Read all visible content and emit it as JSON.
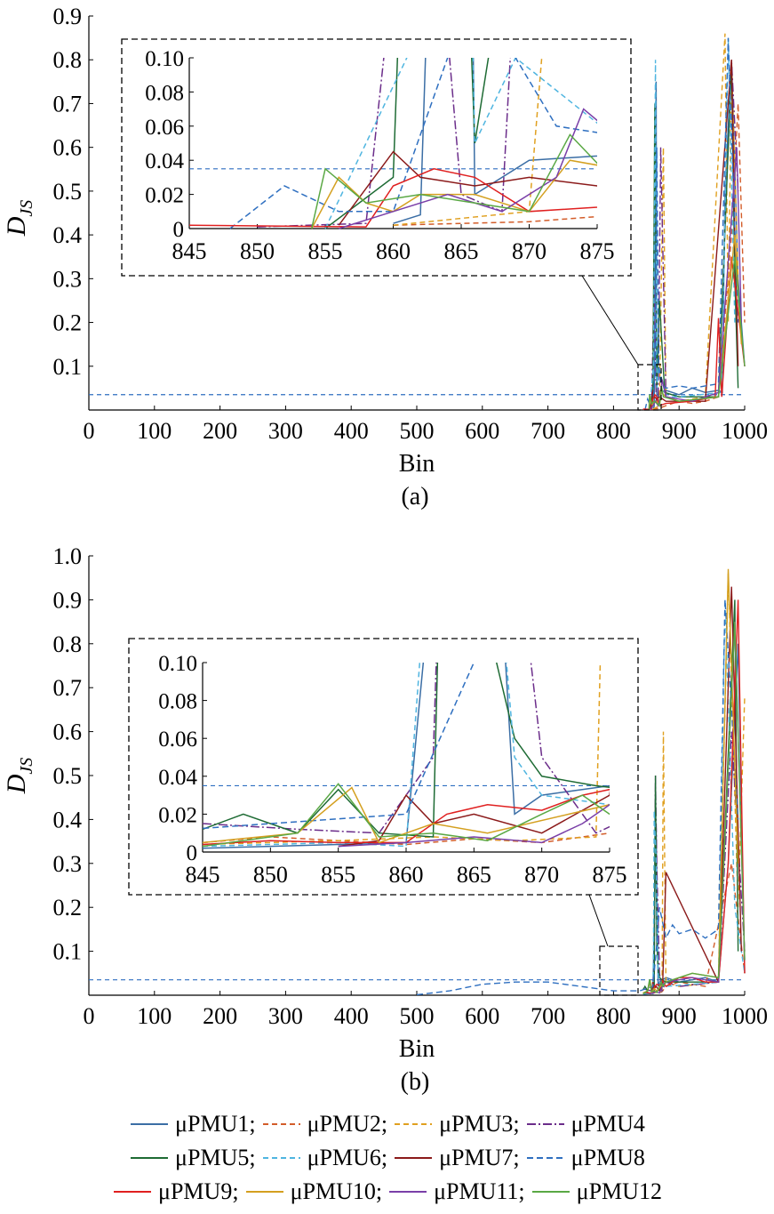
{
  "chart_data": [
    {
      "type": "line",
      "panel_label": "(a)",
      "xlabel": "Bin",
      "ylabel": "D",
      "ylabel_sub": "JS",
      "xlim": [
        0,
        1000
      ],
      "ylim": [
        0,
        0.9
      ],
      "xticks": [
        "0",
        "100",
        "200",
        "300",
        "400",
        "500",
        "600",
        "700",
        "800",
        "900",
        "1000"
      ],
      "yticks": [
        "0.1",
        "0.2",
        "0.3",
        "0.4",
        "0.5",
        "0.6",
        "0.7",
        "0.8",
        "0.9"
      ],
      "threshold": 0.035,
      "inset": {
        "xlim": [
          845,
          875
        ],
        "ylim": [
          0,
          0.1
        ],
        "xticks": [
          "845",
          "850",
          "855",
          "860",
          "865",
          "870",
          "875"
        ],
        "yticks": [
          "0",
          "0.02",
          "0.04",
          "0.06",
          "0.08",
          "0.10"
        ]
      },
      "series": [
        {
          "name": "μPMU1",
          "color": "#3b6ea5",
          "dash": "",
          "x": [
            860,
            862,
            865,
            866,
            870,
            880,
            900,
            920,
            940,
            960,
            966,
            970,
            980,
            990,
            1000
          ],
          "y": [
            0.003,
            0.008,
            0.75,
            0.02,
            0.04,
            0.045,
            0.035,
            0.05,
            0.04,
            0.045,
            0.04,
            0.5,
            0.8,
            0.3,
            0.1
          ]
        },
        {
          "name": "μPMU2",
          "color": "#d35d2a",
          "dash": "6,4",
          "x": [
            860,
            870,
            880,
            900,
            920,
            940,
            960,
            980,
            990,
            1000
          ],
          "y": [
            0.002,
            0.004,
            0.01,
            0.02,
            0.015,
            0.02,
            0.03,
            0.4,
            0.7,
            0.2
          ]
        },
        {
          "name": "μPMU3",
          "color": "#e0a020",
          "dash": "6,4",
          "x": [
            860,
            870,
            874,
            876,
            880,
            900,
            940,
            970,
            975,
            980,
            990
          ],
          "y": [
            0.002,
            0.01,
            0.4,
            0.6,
            0.03,
            0.02,
            0.03,
            0.86,
            0.2,
            0.8,
            0.3
          ]
        },
        {
          "name": "μPMU4",
          "color": "#6b2d8a",
          "dash": "10,3,2,3",
          "x": [
            850,
            858,
            862,
            865,
            868,
            872,
            880,
            900,
            960,
            980,
            990
          ],
          "y": [
            0.001,
            0.003,
            0.3,
            0.02,
            0.01,
            0.6,
            0.03,
            0.02,
            0.03,
            0.8,
            0.5
          ]
        },
        {
          "name": "μPMU5",
          "color": "#1e6b34",
          "dash": "",
          "x": [
            855,
            860,
            863,
            866,
            870,
            878,
            900,
            960,
            980,
            985,
            990
          ],
          "y": [
            0.0,
            0.03,
            0.7,
            0.05,
            0.25,
            0.04,
            0.03,
            0.03,
            0.79,
            0.3,
            0.05
          ]
        },
        {
          "name": "μPMU6",
          "color": "#4fb5e0",
          "dash": "6,4",
          "x": [
            855,
            861,
            864,
            866,
            869,
            880,
            900,
            965,
            975,
            985
          ],
          "y": [
            0.0,
            0.1,
            0.8,
            0.05,
            0.1,
            0.03,
            0.03,
            0.04,
            0.85,
            0.2
          ]
        },
        {
          "name": "μPMU7",
          "color": "#8b1a1a",
          "dash": "",
          "x": [
            856,
            860,
            862,
            866,
            870,
            880,
            940,
            980,
            985,
            990
          ],
          "y": [
            0.002,
            0.045,
            0.03,
            0.025,
            0.03,
            0.02,
            0.02,
            0.8,
            0.4,
            0.1
          ]
        },
        {
          "name": "μPMU8",
          "color": "#2e6fc0",
          "dash": "7,4",
          "x": [
            848,
            852,
            856,
            860,
            864,
            866,
            869,
            872,
            880,
            900,
            920,
            960,
            975,
            990
          ],
          "y": [
            0.0,
            0.025,
            0.01,
            0.01,
            0.1,
            0.6,
            0.1,
            0.06,
            0.05,
            0.055,
            0.05,
            0.06,
            0.85,
            0.2
          ]
        },
        {
          "name": "μPMU9",
          "color": "#e02020",
          "dash": "",
          "x": [
            845,
            858,
            860,
            863,
            866,
            870,
            880,
            920,
            955,
            960,
            965,
            980,
            1000
          ],
          "y": [
            0.002,
            0.001,
            0.025,
            0.035,
            0.03,
            0.01,
            0.015,
            0.02,
            0.03,
            0.21,
            0.03,
            0.35,
            0.1
          ]
        },
        {
          "name": "μPMU10",
          "color": "#d4a020",
          "dash": "",
          "x": [
            854,
            856,
            858,
            860,
            862,
            866,
            870,
            873,
            880,
            900,
            960,
            985,
            995
          ],
          "y": [
            0.0,
            0.03,
            0.015,
            0.01,
            0.02,
            0.02,
            0.01,
            0.04,
            0.03,
            0.02,
            0.03,
            0.4,
            0.15
          ]
        },
        {
          "name": "μPMU11",
          "color": "#7a3fa8",
          "dash": "",
          "x": [
            856,
            860,
            864,
            868,
            872,
            874,
            880,
            920,
            960,
            988,
            995
          ],
          "y": [
            0.0,
            0.01,
            0.02,
            0.01,
            0.03,
            0.07,
            0.03,
            0.02,
            0.04,
            0.6,
            0.2
          ]
        },
        {
          "name": "μPMU12",
          "color": "#5aa844",
          "dash": "",
          "x": [
            854,
            855,
            858,
            862,
            866,
            870,
            873,
            876,
            900,
            960,
            985,
            1000
          ],
          "y": [
            0.0,
            0.035,
            0.015,
            0.02,
            0.015,
            0.01,
            0.055,
            0.03,
            0.02,
            0.03,
            0.35,
            0.1
          ]
        }
      ]
    },
    {
      "type": "line",
      "panel_label": "(b)",
      "xlabel": "Bin",
      "ylabel": "D",
      "ylabel_sub": "JS",
      "xlim": [
        0,
        1000
      ],
      "ylim": [
        0,
        1.0
      ],
      "xticks": [
        "0",
        "100",
        "200",
        "300",
        "400",
        "500",
        "600",
        "700",
        "800",
        "900",
        "1000"
      ],
      "yticks": [
        "0.1",
        "0.2",
        "0.3",
        "0.4",
        "0.5",
        "0.6",
        "0.7",
        "0.8",
        "0.9",
        "1.0"
      ],
      "threshold": 0.035,
      "inset": {
        "xlim": [
          845,
          875
        ],
        "ylim": [
          0,
          0.1
        ],
        "xticks": [
          "845",
          "850",
          "855",
          "860",
          "865",
          "870",
          "875"
        ],
        "yticks": [
          "0",
          "0.02",
          "0.04",
          "0.06",
          "0.08",
          "0.10"
        ]
      },
      "series": [
        {
          "name": "μPMU1",
          "color": "#3b6ea5",
          "dash": "",
          "x": [
            845,
            850,
            855,
            860,
            865,
            868,
            870,
            880,
            900,
            940,
            960,
            975,
            990,
            1000
          ],
          "y": [
            0.002,
            0.003,
            0.004,
            0.005,
            0.38,
            0.02,
            0.03,
            0.04,
            0.03,
            0.04,
            0.03,
            0.3,
            0.8,
            0.05
          ]
        },
        {
          "name": "μPMU2",
          "color": "#d35d2a",
          "dash": "6,4",
          "x": [
            845,
            850,
            855,
            860,
            865,
            870,
            875,
            880,
            900,
            940,
            980,
            1000
          ],
          "y": [
            0.005,
            0.008,
            0.006,
            0.004,
            0.007,
            0.005,
            0.01,
            0.02,
            0.03,
            0.02,
            0.3,
            0.05
          ]
        },
        {
          "name": "μPMU3",
          "color": "#e0a020",
          "dash": "6,4",
          "x": [
            845,
            855,
            862,
            868,
            874,
            876,
            880,
            900,
            960,
            975,
            990,
            1000
          ],
          "y": [
            0.004,
            0.006,
            0.008,
            0.006,
            0.008,
            0.6,
            0.03,
            0.02,
            0.03,
            0.96,
            0.2,
            0.68
          ]
        },
        {
          "name": "μPMU4",
          "color": "#6b2d8a",
          "dash": "10,3,2,3",
          "x": [
            845,
            852,
            858,
            862,
            864,
            866,
            870,
            874,
            880,
            900,
            960,
            980,
            1000
          ],
          "y": [
            0.015,
            0.012,
            0.01,
            0.05,
            0.5,
            0.3,
            0.05,
            0.01,
            0.03,
            0.02,
            0.03,
            0.6,
            0.1
          ]
        },
        {
          "name": "μPMU5",
          "color": "#1e6b34",
          "dash": "",
          "x": [
            845,
            848,
            852,
            855,
            858,
            862,
            863,
            864,
            866,
            868,
            870,
            874,
            880,
            960,
            985,
            990
          ],
          "y": [
            0.012,
            0.02,
            0.01,
            0.033,
            0.01,
            0.008,
            0.3,
            0.5,
            0.12,
            0.06,
            0.04,
            0.035,
            0.03,
            0.03,
            0.9,
            0.1
          ]
        },
        {
          "name": "μPMU6",
          "color": "#4fb5e0",
          "dash": "6,4",
          "x": [
            845,
            855,
            860,
            861,
            862,
            865,
            868,
            870,
            880,
            960,
            970,
            985,
            1000
          ],
          "y": [
            0.003,
            0.005,
            0.003,
            0.1,
            0.42,
            0.3,
            0.05,
            0.03,
            0.02,
            0.03,
            0.9,
            0.2,
            0.05
          ]
        },
        {
          "name": "μPMU7",
          "color": "#8b1a1a",
          "dash": "",
          "x": [
            855,
            858,
            860,
            862,
            865,
            870,
            875,
            880,
            960,
            980,
            995
          ],
          "y": [
            0.003,
            0.006,
            0.03,
            0.015,
            0.02,
            0.01,
            0.03,
            0.28,
            0.03,
            0.93,
            0.1
          ]
        },
        {
          "name": "μPMU8",
          "color": "#2e6fc0",
          "dash": "7,4",
          "x": [
            500,
            550,
            600,
            650,
            700,
            750,
            800,
            840,
            860,
            865,
            870,
            880,
            890,
            900,
            920,
            940,
            960,
            970,
            990
          ],
          "y": [
            0.001,
            0.01,
            0.025,
            0.03,
            0.03,
            0.02,
            0.01,
            0.01,
            0.02,
            0.1,
            0.2,
            0.13,
            0.16,
            0.14,
            0.15,
            0.13,
            0.15,
            0.9,
            0.4
          ]
        },
        {
          "name": "μPMU9",
          "color": "#e02020",
          "dash": "",
          "x": [
            845,
            850,
            855,
            860,
            863,
            866,
            870,
            873,
            875,
            880,
            900,
            920,
            940,
            960,
            975,
            990,
            1000
          ],
          "y": [
            0.004,
            0.006,
            0.005,
            0.005,
            0.02,
            0.025,
            0.022,
            0.03,
            0.033,
            0.02,
            0.04,
            0.04,
            0.03,
            0.03,
            0.3,
            0.9,
            0.05
          ]
        },
        {
          "name": "μPMU10",
          "color": "#d4a020",
          "dash": "",
          "x": [
            845,
            852,
            856,
            858,
            862,
            866,
            872,
            875,
            880,
            920,
            960,
            975,
            990
          ],
          "y": [
            0.005,
            0.01,
            0.034,
            0.005,
            0.015,
            0.01,
            0.02,
            0.025,
            0.03,
            0.05,
            0.04,
            0.97,
            0.3
          ]
        },
        {
          "name": "μPMU11",
          "color": "#7a3fa8",
          "dash": "",
          "x": [
            855,
            860,
            865,
            870,
            873,
            875,
            880,
            920,
            960,
            985,
            1000
          ],
          "y": [
            0.003,
            0.005,
            0.008,
            0.005,
            0.015,
            0.025,
            0.03,
            0.04,
            0.03,
            0.85,
            0.08
          ]
        },
        {
          "name": "μPMU12",
          "color": "#5aa844",
          "dash": "",
          "x": [
            845,
            852,
            855,
            858,
            862,
            866,
            870,
            873,
            875,
            880,
            920,
            960,
            985,
            1000
          ],
          "y": [
            0.003,
            0.01,
            0.036,
            0.008,
            0.01,
            0.006,
            0.02,
            0.03,
            0.02,
            0.03,
            0.05,
            0.04,
            0.85,
            0.08
          ]
        }
      ]
    }
  ],
  "legend": {
    "rows": [
      [
        "μPMU1;",
        "μPMU2;",
        "μPMU3;",
        "μPMU4"
      ],
      [
        "μPMU5;",
        "μPMU6;",
        "μPMU7;",
        "μPMU8"
      ],
      [
        "μPMU9;",
        "μPMU10;",
        "μPMU11;",
        "μPMU12"
      ]
    ]
  }
}
